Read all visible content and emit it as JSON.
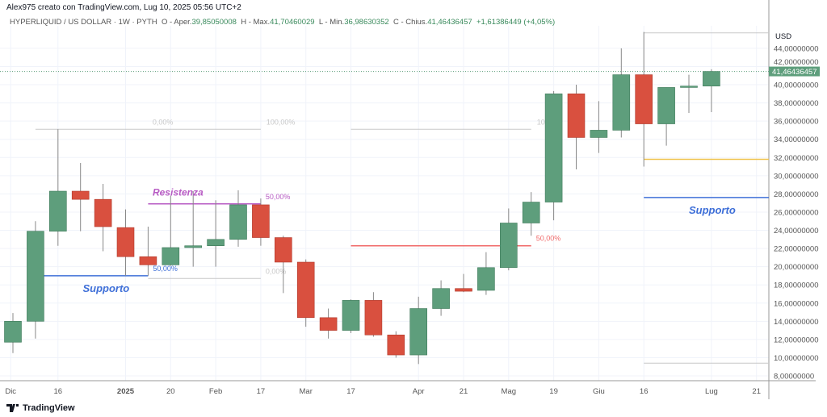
{
  "header": {
    "created": "Alex975 creato con TradingView.com, Lug 10, 2025 05:56 UTC+2",
    "symbol": "HYPERLIQUID / US DOLLAR · 1W · PYTH",
    "o_label": "O - Aper.",
    "o": "39,85050008",
    "h_label": "H - Max.",
    "h": "41,70460029",
    "l_label": "L - Min.",
    "l": "36,98630352",
    "c_label": "C - Chius.",
    "c": "41,46436457",
    "change": "+1,61386449 (+4,05%)"
  },
  "footer": {
    "brand": "TradingView"
  },
  "colors": {
    "up": "#5e9e7c",
    "down": "#d9503f",
    "grid": "#f0f3fa",
    "fib": "#c8c8c8",
    "resist": "#b85cc4",
    "support": "#3e6fd8",
    "yellow": "#f0c24b",
    "red": "#f06a6a"
  },
  "chart_data": {
    "type": "candlestick",
    "currency": "USD",
    "ylim": [
      7,
      46
    ],
    "yticks": [
      "8,00000000",
      "10,00000000",
      "12,00000000",
      "14,00000000",
      "16,00000000",
      "18,00000000",
      "20,00000000",
      "22,00000000",
      "24,00000000",
      "26,00000000",
      "28,00000000",
      "30,00000000",
      "32,00000000",
      "34,00000000",
      "36,00000000",
      "38,00000000",
      "40,00000000",
      "42,00000000",
      "44,00000000"
    ],
    "ytick_values": [
      8,
      10,
      12,
      14,
      16,
      18,
      20,
      22,
      24,
      26,
      28,
      30,
      32,
      34,
      36,
      38,
      40,
      42,
      44
    ],
    "xticks": [
      {
        "label": "Dic",
        "i": -0.1
      },
      {
        "label": "16",
        "i": 2
      },
      {
        "label": "2025",
        "i": 5
      },
      {
        "label": "20",
        "i": 7
      },
      {
        "label": "Feb",
        "i": 9
      },
      {
        "label": "17",
        "i": 11
      },
      {
        "label": "Mar",
        "i": 13
      },
      {
        "label": "17",
        "i": 15
      },
      {
        "label": "Apr",
        "i": 18
      },
      {
        "label": "21",
        "i": 20
      },
      {
        "label": "Mag",
        "i": 22
      },
      {
        "label": "19",
        "i": 24
      },
      {
        "label": "Giu",
        "i": 26
      },
      {
        "label": "16",
        "i": 28
      },
      {
        "label": "Lug",
        "i": 31
      },
      {
        "label": "21",
        "i": 33
      }
    ],
    "last_price": "41,46436457",
    "last_value": 41.46,
    "ohlc": [
      [
        11.7,
        14.9,
        10.5,
        14.0
      ],
      [
        14.0,
        25.0,
        12.1,
        23.9
      ],
      [
        23.9,
        35.1,
        22.3,
        28.3
      ],
      [
        28.3,
        31.4,
        23.9,
        27.4
      ],
      [
        27.4,
        29.1,
        21.7,
        24.4
      ],
      [
        24.3,
        26.3,
        19.0,
        21.1
      ],
      [
        21.1,
        24.4,
        19.0,
        20.2
      ],
      [
        20.2,
        27.8,
        20.1,
        22.1
      ],
      [
        22.1,
        28.3,
        20.0,
        22.3
      ],
      [
        22.3,
        27.3,
        20.0,
        23.0
      ],
      [
        23.0,
        28.4,
        22.2,
        26.8
      ],
      [
        26.8,
        27.5,
        22.3,
        23.2
      ],
      [
        23.2,
        23.4,
        17.1,
        20.5
      ],
      [
        20.5,
        20.8,
        13.4,
        14.4
      ],
      [
        14.4,
        15.4,
        12.1,
        13.0
      ],
      [
        13.0,
        16.4,
        12.7,
        16.3
      ],
      [
        16.3,
        17.2,
        12.3,
        12.5
      ],
      [
        12.5,
        12.9,
        10.0,
        10.3
      ],
      [
        10.3,
        16.7,
        9.3,
        15.4
      ],
      [
        15.4,
        18.5,
        14.6,
        17.6
      ],
      [
        17.6,
        19.2,
        17.2,
        17.3
      ],
      [
        17.4,
        21.6,
        16.9,
        19.9
      ],
      [
        19.9,
        26.4,
        19.6,
        24.8
      ],
      [
        24.8,
        28.2,
        23.4,
        27.1
      ],
      [
        27.1,
        39.3,
        25.1,
        39.0
      ],
      [
        39.0,
        40.0,
        30.7,
        34.2
      ],
      [
        34.2,
        38.2,
        32.5,
        35.0
      ],
      [
        35.0,
        44.0,
        34.2,
        41.1
      ],
      [
        41.1,
        45.8,
        31.0,
        35.7
      ],
      [
        35.7,
        39.7,
        33.3,
        39.7
      ],
      [
        39.7,
        41.1,
        36.9,
        39.85
      ],
      [
        39.85,
        41.7,
        36.99,
        41.46
      ]
    ],
    "annotations": [
      {
        "kind": "fib",
        "i0": 1,
        "i1": 11,
        "price": 35.1,
        "color": "fib",
        "label_start": "0,00%",
        "label_end": "100,00%"
      },
      {
        "kind": "fib",
        "i0": 15,
        "i1": 23,
        "price": 35.1,
        "color": "fib",
        "label_end": "10"
      },
      {
        "kind": "line",
        "i0": 6,
        "i1": 11,
        "price": 26.9,
        "color": "resist",
        "label": "50,00%"
      },
      {
        "kind": "line",
        "i0": 1,
        "i1": 6,
        "price": 19.0,
        "color": "support",
        "label": "50,00%",
        "label_at": "start2"
      },
      {
        "kind": "line",
        "i0": 6,
        "i1": 11,
        "price": 18.7,
        "color": "fib",
        "label": "0,00%"
      },
      {
        "kind": "line",
        "i0": 15,
        "i1": 23,
        "price": 22.3,
        "color": "red",
        "label": "50,00%"
      },
      {
        "kind": "line",
        "i0": 28,
        "i1": 34,
        "price": 45.7,
        "color": "fib"
      },
      {
        "kind": "line",
        "i0": 28,
        "i1": 34,
        "price": 31.8,
        "color": "yellow"
      },
      {
        "kind": "line",
        "i0": 28,
        "i1": 34,
        "price": 27.6,
        "color": "support"
      },
      {
        "kind": "line",
        "i0": 28,
        "i1": 34,
        "price": 9.4,
        "color": "fib"
      }
    ],
    "texts": [
      {
        "text": "Resistenza",
        "i": 6.2,
        "price": 27.8,
        "color": "resist"
      },
      {
        "text": "Supporto",
        "i": 3.1,
        "price": 17.2,
        "color": "support"
      },
      {
        "text": "Supporto",
        "i": 30,
        "price": 25.8,
        "color": "support"
      }
    ]
  }
}
